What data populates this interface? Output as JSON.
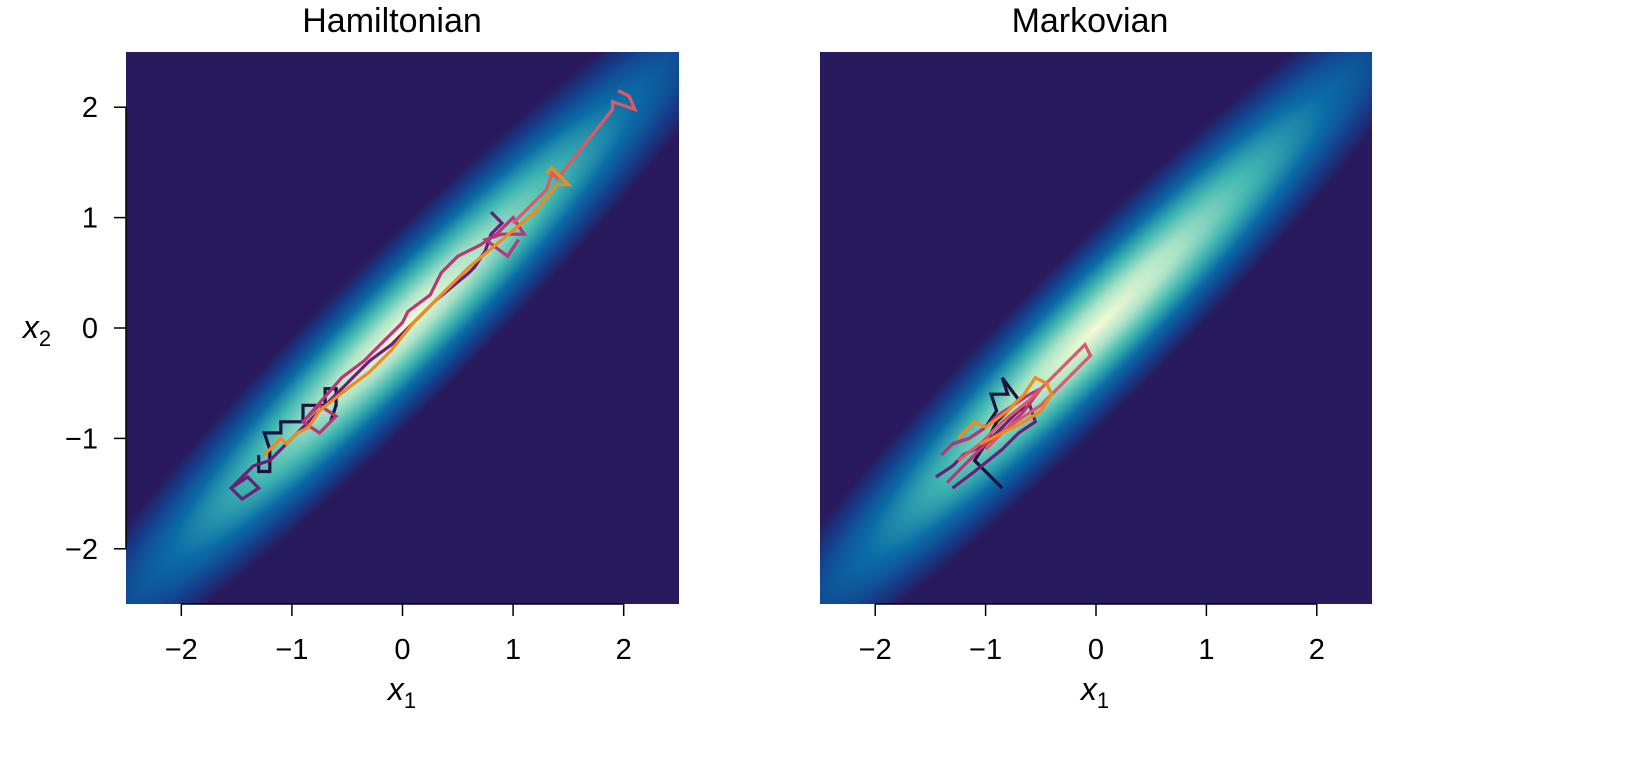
{
  "figure": {
    "panels": [
      {
        "title": "Hamiltonian",
        "xlabel": "x",
        "xlabel_sub": "1",
        "ylabel": "x",
        "ylabel_sub": "2"
      },
      {
        "title": "Markovian",
        "xlabel": "x",
        "xlabel_sub": "1"
      }
    ]
  },
  "chart_data": [
    {
      "type": "line",
      "title": "Hamiltonian",
      "xlabel": "x1",
      "ylabel": "x2",
      "xlim": [
        -2.5,
        2.5
      ],
      "ylim": [
        -2.5,
        2.5
      ],
      "xticks": [
        -2,
        -1,
        0,
        1,
        2
      ],
      "xtick_labels": [
        "−2",
        "−1",
        "0",
        "1",
        "2"
      ],
      "yticks": [
        -2,
        -1,
        0,
        1,
        2
      ],
      "ytick_labels": [
        "−2",
        "−1",
        "0",
        "1",
        "2"
      ],
      "background": {
        "type": "heatmap",
        "density": "bivariate normal",
        "correlation": 0.95,
        "colormap": "dark purple → blue → teal → pale yellow"
      },
      "grid": false,
      "series": [
        {
          "color": "#1b1340",
          "x": [
            -1.3,
            -1.3,
            -1.2,
            -1.2,
            -1.25,
            -1.1,
            -1.1,
            -0.9,
            -0.9,
            -0.7,
            -0.7,
            -0.6,
            -0.6,
            -0.65
          ],
          "y": [
            -1.15,
            -1.3,
            -1.3,
            -1.1,
            -0.95,
            -0.95,
            -0.85,
            -0.85,
            -0.7,
            -0.7,
            -0.55,
            -0.55,
            -0.7,
            -0.85
          ]
        },
        {
          "color": "#6e1e7a",
          "x": [
            -1.55,
            -1.4,
            -1.3,
            -1.45,
            -1.55,
            -1.35,
            -1.2,
            -1.0,
            -0.7,
            -0.5,
            -0.3,
            -0.1,
            0.1,
            0.3,
            0.6,
            0.65,
            0.75,
            0.8,
            0.9,
            0.8
          ],
          "y": [
            -1.45,
            -1.35,
            -1.45,
            -1.55,
            -1.45,
            -1.25,
            -1.2,
            -1.0,
            -0.7,
            -0.5,
            -0.3,
            -0.15,
            0.05,
            0.25,
            0.5,
            0.55,
            0.7,
            0.85,
            0.95,
            1.05
          ]
        },
        {
          "color": "#b8367a",
          "x": [
            -0.9,
            -0.75,
            -0.6,
            -0.75,
            -0.9,
            -0.55,
            -0.35,
            -0.15,
            0.0,
            0.05,
            0.25,
            0.35,
            0.5,
            0.7,
            0.85,
            1.0,
            1.1,
            0.9,
            0.75,
            0.95,
            1.05
          ],
          "y": [
            -0.85,
            -0.7,
            -0.8,
            -0.95,
            -0.85,
            -0.45,
            -0.3,
            -0.1,
            0.05,
            0.15,
            0.3,
            0.5,
            0.65,
            0.75,
            0.85,
            1.0,
            0.85,
            0.85,
            0.8,
            0.65,
            0.8
          ]
        },
        {
          "color": "#e05866",
          "x": [
            1.0,
            1.3,
            1.35,
            1.4,
            1.9,
            1.9,
            2.1,
            2.05,
            1.95
          ],
          "y": [
            0.95,
            1.25,
            1.4,
            1.35,
            1.98,
            2.05,
            1.98,
            2.1,
            2.15
          ]
        },
        {
          "color": "#f08a1f",
          "x": [
            -1.25,
            -1.1,
            -1.05,
            -0.95,
            -0.85,
            -0.75,
            -0.5,
            -0.3,
            -0.1,
            0.1,
            0.4,
            0.6,
            0.9,
            1.2,
            1.4,
            1.5,
            1.35,
            1.3
          ],
          "y": [
            -1.15,
            -1.0,
            -1.05,
            -0.95,
            -0.9,
            -0.75,
            -0.55,
            -0.4,
            -0.2,
            0.05,
            0.35,
            0.55,
            0.8,
            1.05,
            1.3,
            1.3,
            1.45,
            1.4
          ]
        }
      ]
    },
    {
      "type": "line",
      "title": "Markovian",
      "xlabel": "x1",
      "xlim": [
        -2.5,
        2.5
      ],
      "ylim": [
        -2.5,
        2.5
      ],
      "xticks": [
        -2,
        -1,
        0,
        1,
        2
      ],
      "xtick_labels": [
        "−2",
        "−1",
        "0",
        "1",
        "2"
      ],
      "background": {
        "type": "heatmap",
        "density": "bivariate normal",
        "correlation": 0.95,
        "colormap": "dark purple → blue → teal → pale yellow"
      },
      "grid": false,
      "series": [
        {
          "color": "#1b1340",
          "x": [
            -1.3,
            -1.15,
            -1.0,
            -0.9,
            -0.95,
            -0.8,
            -0.85,
            -0.7,
            -0.9,
            -1.0,
            -1.1,
            -0.95,
            -0.85
          ],
          "y": [
            -1.05,
            -1.0,
            -0.9,
            -0.75,
            -0.6,
            -0.6,
            -0.45,
            -0.65,
            -0.85,
            -1.05,
            -1.2,
            -1.35,
            -1.45
          ]
        },
        {
          "color": "#6e1e7a",
          "x": [
            -1.45,
            -1.3,
            -1.2,
            -1.0,
            -0.9,
            -0.8,
            -0.7,
            -0.6,
            -0.55,
            -0.7,
            -0.85,
            -1.1,
            -1.3
          ],
          "y": [
            -1.35,
            -1.25,
            -1.15,
            -1.05,
            -0.95,
            -0.85,
            -0.75,
            -0.7,
            -0.85,
            -0.95,
            -1.1,
            -1.3,
            -1.45
          ]
        },
        {
          "color": "#b8367a",
          "x": [
            -1.4,
            -1.3,
            -1.15,
            -1.0,
            -0.9,
            -0.75,
            -0.6,
            -0.5,
            -0.65,
            -0.8,
            -1.0,
            -1.2,
            -1.35
          ],
          "y": [
            -1.15,
            -1.05,
            -1.0,
            -0.9,
            -0.8,
            -0.7,
            -0.6,
            -0.55,
            -0.75,
            -0.9,
            -1.05,
            -1.25,
            -1.4
          ]
        },
        {
          "color": "#e05866",
          "x": [
            -1.25,
            -1.05,
            -0.85,
            -0.6,
            -0.4,
            -0.1,
            -0.05,
            -0.3,
            -0.5,
            -0.8,
            -1.0
          ],
          "y": [
            -1.2,
            -1.05,
            -0.85,
            -0.65,
            -0.45,
            -0.15,
            -0.25,
            -0.5,
            -0.7,
            -0.9,
            -1.1
          ]
        },
        {
          "color": "#f08a1f",
          "x": [
            -1.25,
            -1.1,
            -1.0,
            -0.8,
            -0.65,
            -0.55,
            -0.45,
            -0.4,
            -0.5,
            -0.65,
            -0.85,
            -1.05
          ],
          "y": [
            -1.0,
            -0.85,
            -0.9,
            -0.75,
            -0.6,
            -0.45,
            -0.5,
            -0.6,
            -0.75,
            -0.85,
            -0.95,
            -1.05
          ]
        }
      ]
    }
  ]
}
